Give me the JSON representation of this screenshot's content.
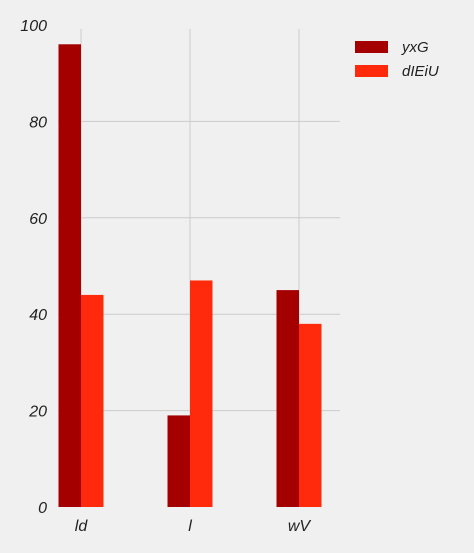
{
  "chart_data": {
    "type": "bar",
    "title": "",
    "xlabel": "",
    "ylabel": "",
    "categories": [
      "ld",
      "l",
      "wV"
    ],
    "series": [
      {
        "name": "yxG",
        "values": [
          96,
          19,
          45
        ],
        "color": "#a50000"
      },
      {
        "name": "dIEiU",
        "values": [
          44,
          47,
          38
        ],
        "color": "#ff2a0c"
      }
    ],
    "ylim": [
      0,
      100
    ],
    "yticks": [
      0,
      20,
      40,
      60,
      80,
      100
    ],
    "grid": true,
    "legend_position": "top-right",
    "background": "#f0f0f0"
  }
}
